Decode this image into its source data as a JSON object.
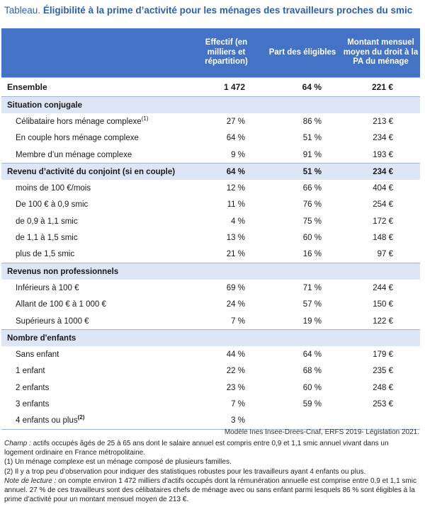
{
  "title": {
    "lead": "Tableau.",
    "main": "Éligibilité à la prime d’activité pour les ménages des travailleurs proches du smic"
  },
  "table": {
    "headers": [
      "",
      "Effectif (en milliers et répartition)",
      "Part des éligibles",
      "Montant mensuel moyen du droit à la PA du ménage"
    ],
    "total": {
      "label": "Ensemble",
      "effectif": "1 472",
      "part": "64 %",
      "montant": "221 €"
    },
    "sections": [
      {
        "title": "Situation conjugale",
        "values": null,
        "rows": [
          {
            "label": "Célibataire hors ménage complexe",
            "sup": "(1)",
            "effectif": "27 %",
            "part": "86 %",
            "montant": "213 €"
          },
          {
            "label": "En couple hors ménage complexe",
            "sup": "",
            "effectif": "64 %",
            "part": "51 %",
            "montant": "234 €"
          },
          {
            "label": "Membre d’un ménage complexe",
            "sup": "",
            "effectif": "9 %",
            "part": "91 %",
            "montant": "193 €"
          }
        ]
      },
      {
        "title": "Revenu d’activité du conjoint (si en couple)",
        "values": {
          "effectif": "64 %",
          "part": "51 %",
          "montant": "234 €"
        },
        "rows": [
          {
            "label": "moins de 100 €/mois",
            "sup": "",
            "effectif": "12 %",
            "part": "66 %",
            "montant": "404 €"
          },
          {
            "label": "De 100 € à 0,9 smic",
            "sup": "",
            "effectif": "11 %",
            "part": "76 %",
            "montant": "254 €"
          },
          {
            "label": "de 0,9 à 1,1 smic",
            "sup": "",
            "effectif": "4 %",
            "part": "75 %",
            "montant": "172 €"
          },
          {
            "label": "de 1,1 à 1,5 smic",
            "sup": "",
            "effectif": "13 %",
            "part": "60 %",
            "montant": "148 €"
          },
          {
            "label": "plus de 1,5 smic",
            "sup": "",
            "effectif": "21 %",
            "part": "16 %",
            "montant": "97 €"
          }
        ]
      },
      {
        "title": "Revenus non professionnels",
        "values": null,
        "rows": [
          {
            "label": "Inférieurs à 100 €",
            "sup": "",
            "effectif": "69 %",
            "part": "71 %",
            "montant": "244 €"
          },
          {
            "label": "Allant de 100 € à 1 000 €",
            "sup": "",
            "effectif": "24 %",
            "part": "57 %",
            "montant": "150 €"
          },
          {
            "label": "Supérieurs à 1000 €",
            "sup": "",
            "effectif": "7 %",
            "part": "19 %",
            "montant": "122 €"
          }
        ]
      },
      {
        "title": "Nombre d'enfants",
        "values": null,
        "rows": [
          {
            "label": "Sans enfant",
            "sup": "",
            "effectif": "44 %",
            "part": "64 %",
            "montant": "179 €"
          },
          {
            "label": "1 enfant",
            "sup": "",
            "effectif": "22 %",
            "part": "68 %",
            "montant": "235 €"
          },
          {
            "label": "2 enfants",
            "sup": "",
            "effectif": "23 %",
            "part": "60 %",
            "montant": "248 €"
          },
          {
            "label": "3 enfants",
            "sup": "",
            "effectif": "7 %",
            "part": "59 %",
            "montant": "253 €"
          },
          {
            "label": "4 enfants ou plus",
            "sup": "(2)",
            "effectif": "3 %",
            "part": "",
            "montant": ""
          }
        ]
      }
    ]
  },
  "source": "Modèle Ines Insee-Drees-Cnaf, ERFS 2019- Législation 2021.",
  "notes": {
    "champ_label": "Champ :",
    "champ": " actifs occupés âgés de 25 à 65 ans dont le salaire annuel est compris entre 0,9 et 1,1 smic annuel vivant dans un logement ordinaire en France métropolitaine.",
    "note1": "(1) Un ménage complexe est un ménage composé de plusieurs familles.",
    "note2": "(2) Il y a trop peu d’observation pour indiquer des statistiques robustes pour les travailleurs ayant 4 enfants ou plus.",
    "lecture_label": "Note de lecture :",
    "lecture": " on compte environ 1 472 milliers d’actifs occupés dont la rémunération annuelle est comprise entre 0,9 et 1,1 smic annuel. 27 % de ces travailleurs sont des célibataires chefs de ménage avec ou sans enfant parmi lesquels 86 % sont éligibles à la prime d’activité pour un montant mensuel moyen de 213 €."
  }
}
